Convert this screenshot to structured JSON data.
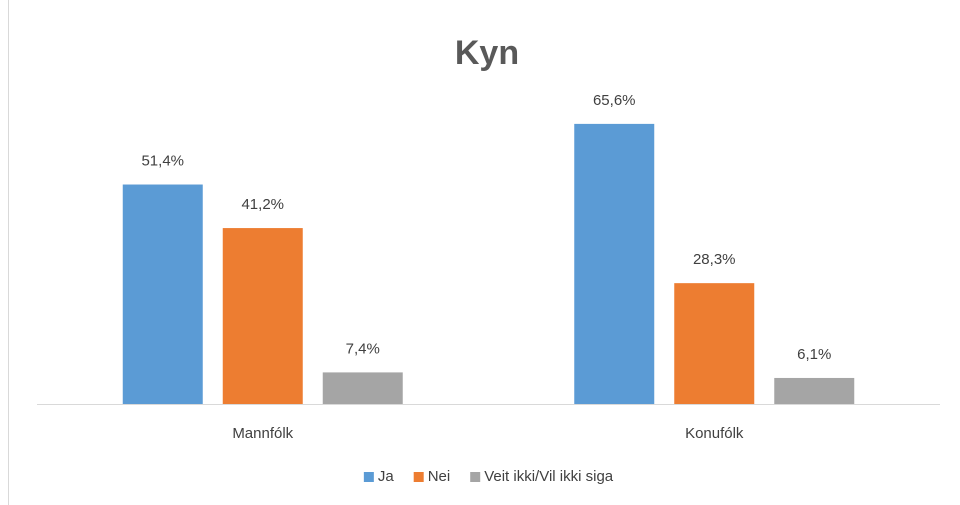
{
  "chart_data": {
    "type": "bar",
    "title": "Kyn",
    "categories": [
      "Mannfólk",
      "Konufólk"
    ],
    "series": [
      {
        "name": "Ja",
        "color": "#5b9bd5",
        "values": [
          51.4,
          65.6
        ],
        "value_labels": [
          "51,4%",
          "65,6%"
        ]
      },
      {
        "name": "Nei",
        "color": "#ed7d31",
        "values": [
          41.2,
          28.3
        ],
        "value_labels": [
          "41,2%",
          "28,3%"
        ]
      },
      {
        "name": "Veit ikki/Vil ikki siga",
        "color": "#a5a5a5",
        "values": [
          7.4,
          6.1
        ],
        "value_labels": [
          "7,4%",
          "6,1%"
        ]
      }
    ],
    "legend": "bottom"
  }
}
